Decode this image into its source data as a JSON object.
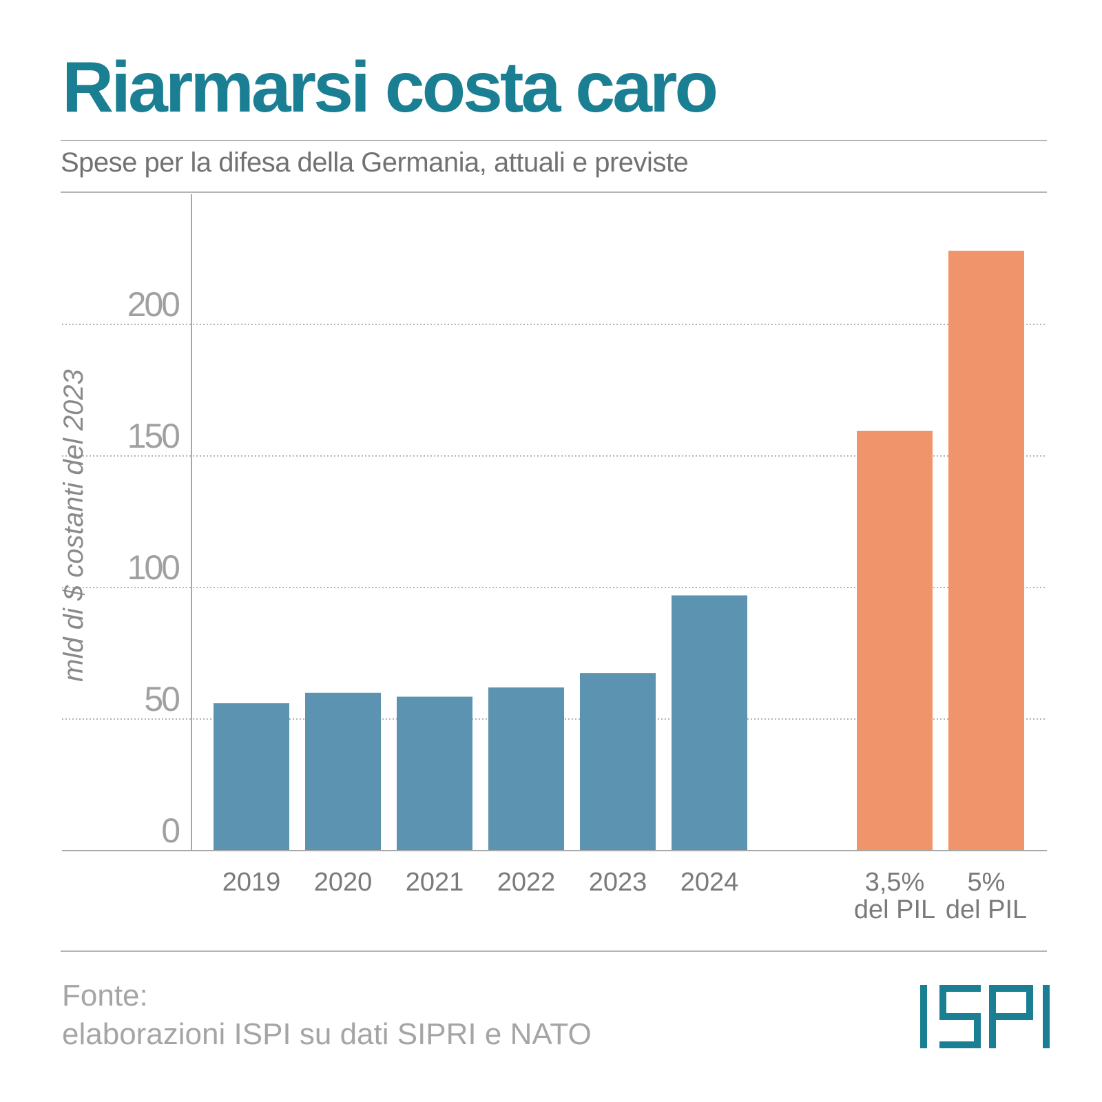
{
  "header": {
    "title": "Riarmarsi costa caro",
    "subtitle": "Spese per la difesa della Germania, attuali e previste"
  },
  "chart_data": {
    "type": "bar",
    "ylabel": "mld di $ costanti del 2023",
    "ylim": [
      0,
      225
    ],
    "yticks": [
      "0",
      "50",
      "100",
      "150",
      "200"
    ],
    "grid": true,
    "categories": [
      [
        "2019"
      ],
      [
        "2020"
      ],
      [
        "2021"
      ],
      [
        "2022"
      ],
      [
        "2023"
      ],
      [
        "2024"
      ],
      [
        "3,5%",
        "del PIL"
      ],
      [
        "5%",
        "del PIL"
      ]
    ],
    "values": [
      56,
      60,
      58.5,
      62,
      67.5,
      97,
      159.5,
      228
    ],
    "colors": [
      "#5b93b0",
      "#5b93b0",
      "#5b93b0",
      "#5b93b0",
      "#5b93b0",
      "#5b93b0",
      "#f0946b",
      "#f0946b"
    ]
  },
  "footer": {
    "source_line1": "Fonte:",
    "source_line2": "elaborazioni ISPI su dati SIPRI e NATO",
    "logo_text": "ISPI",
    "logo_color": "#1a7f93"
  }
}
